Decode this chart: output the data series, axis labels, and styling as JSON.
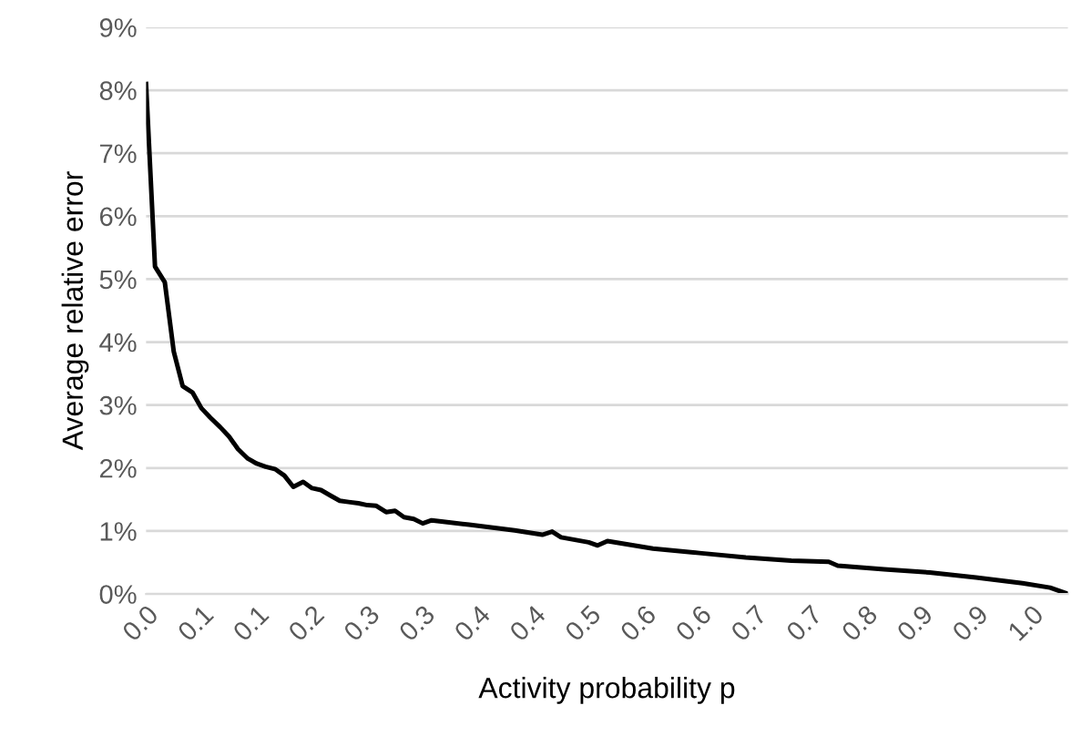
{
  "chart_data": {
    "type": "line",
    "xlabel": "Activity probability p",
    "ylabel": "Average relative error",
    "xlim": [
      0.005,
      1.038
    ],
    "ylim": [
      0,
      9
    ],
    "xticks": [
      {
        "value": 0.005,
        "label": "0.0"
      },
      {
        "value": 0.067,
        "label": "0.1"
      },
      {
        "value": 0.129,
        "label": "0.1"
      },
      {
        "value": 0.191,
        "label": "0.2"
      },
      {
        "value": 0.253,
        "label": "0.3"
      },
      {
        "value": 0.315,
        "label": "0.3"
      },
      {
        "value": 0.377,
        "label": "0.4"
      },
      {
        "value": 0.439,
        "label": "0.4"
      },
      {
        "value": 0.501,
        "label": "0.5"
      },
      {
        "value": 0.563,
        "label": "0.6"
      },
      {
        "value": 0.625,
        "label": "0.6"
      },
      {
        "value": 0.687,
        "label": "0.7"
      },
      {
        "value": 0.749,
        "label": "0.7"
      },
      {
        "value": 0.811,
        "label": "0.8"
      },
      {
        "value": 0.873,
        "label": "0.9"
      },
      {
        "value": 0.935,
        "label": "0.9"
      },
      {
        "value": 0.997,
        "label": "1.0"
      }
    ],
    "yticks": [
      {
        "value": 0,
        "label": "0%"
      },
      {
        "value": 1,
        "label": "1%"
      },
      {
        "value": 2,
        "label": "2%"
      },
      {
        "value": 3,
        "label": "3%"
      },
      {
        "value": 4,
        "label": "4%"
      },
      {
        "value": 5,
        "label": "5%"
      },
      {
        "value": 6,
        "label": "6%"
      },
      {
        "value": 7,
        "label": "7%"
      },
      {
        "value": 8,
        "label": "8%"
      },
      {
        "value": 9,
        "label": "9%"
      }
    ],
    "grid": "y",
    "legend": false,
    "marker": "none",
    "line_style": "solid",
    "series": [
      {
        "color": "#000000",
        "x": [
          0.005,
          0.015,
          0.026,
          0.036,
          0.046,
          0.057,
          0.067,
          0.077,
          0.088,
          0.098,
          0.108,
          0.119,
          0.129,
          0.139,
          0.15,
          0.16,
          0.17,
          0.181,
          0.191,
          0.201,
          0.212,
          0.222,
          0.232,
          0.243,
          0.253,
          0.263,
          0.274,
          0.284,
          0.294,
          0.305,
          0.315,
          0.325,
          0.336,
          0.367,
          0.418,
          0.449,
          0.46,
          0.47,
          0.501,
          0.511,
          0.522,
          0.573,
          0.625,
          0.677,
          0.728,
          0.77,
          0.78,
          0.832,
          0.883,
          0.935,
          0.987,
          1.018,
          1.038
        ],
        "values": [
          8.1,
          5.2,
          4.95,
          3.85,
          3.3,
          3.2,
          2.95,
          2.8,
          2.65,
          2.5,
          2.3,
          2.15,
          2.07,
          2.02,
          1.98,
          1.88,
          1.7,
          1.78,
          1.68,
          1.65,
          1.56,
          1.48,
          1.46,
          1.44,
          1.41,
          1.4,
          1.3,
          1.32,
          1.22,
          1.19,
          1.12,
          1.17,
          1.15,
          1.1,
          1.01,
          0.94,
          0.99,
          0.9,
          0.82,
          0.77,
          0.84,
          0.72,
          0.65,
          0.58,
          0.53,
          0.51,
          0.45,
          0.39,
          0.34,
          0.26,
          0.17,
          0.1,
          0.0
        ]
      }
    ]
  }
}
